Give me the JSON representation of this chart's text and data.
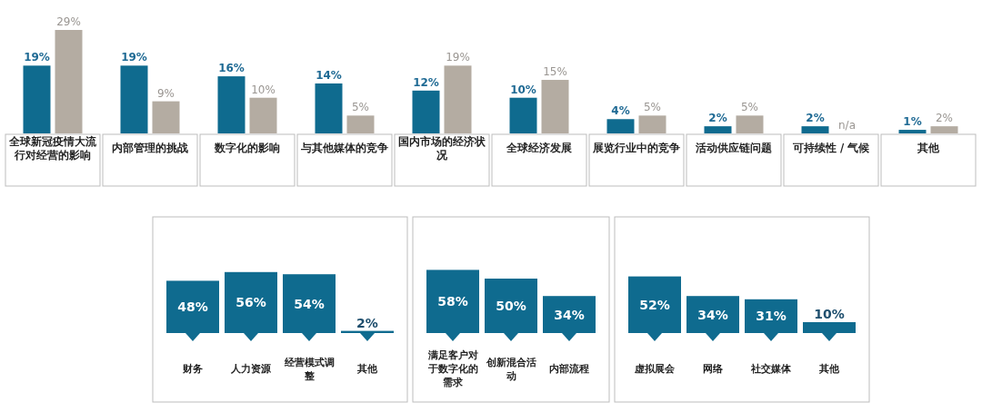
{
  "chart_data": [
    {
      "type": "bar",
      "categories": [
        "全球新冠疫情大流行对经营的影响",
        "内部管理的挑战",
        "数字化的影响",
        "与其他媒体的竞争",
        "国内市场的经济状况",
        "全球经济发展",
        "展览行业中的竞争",
        "活动供应链问题",
        "可持续性 / 气候",
        "其他"
      ],
      "series": [
        {
          "color": "#0f6b8f",
          "values": [
            19,
            19,
            16,
            14,
            12,
            10,
            4,
            2,
            2,
            1
          ],
          "value_labels": [
            "19%",
            "19%",
            "16%",
            "14%",
            "12%",
            "10%",
            "4%",
            "2%",
            "2%",
            "1%"
          ]
        },
        {
          "color": "#b4aca2",
          "values": [
            29,
            9,
            10,
            5,
            19,
            15,
            5,
            5,
            null,
            2
          ],
          "value_labels": [
            "29%",
            "9%",
            "10%",
            "5%",
            "19%",
            "15%",
            "5%",
            "5%",
            "n/a",
            "2%"
          ]
        }
      ]
    },
    {
      "type": "bar",
      "categories": [
        "财务",
        "人力资源",
        "经营模式调整",
        "其他"
      ],
      "color": "#0f6b8f",
      "values": [
        48,
        56,
        54,
        2
      ],
      "value_labels": [
        "48%",
        "56%",
        "54%",
        "2%"
      ]
    },
    {
      "type": "bar",
      "categories": [
        "满足客户对于数字化的需求",
        "创新混合活动",
        "内部流程"
      ],
      "color": "#0f6b8f",
      "values": [
        58,
        50,
        34
      ],
      "value_labels": [
        "58%",
        "50%",
        "34%"
      ]
    },
    {
      "type": "bar",
      "categories": [
        "虚拟展会",
        "网络",
        "社交媒体",
        "其他"
      ],
      "color": "#0f6b8f",
      "values": [
        52,
        34,
        31,
        10
      ],
      "value_labels": [
        "52%",
        "34%",
        "31%",
        "10%"
      ]
    }
  ]
}
